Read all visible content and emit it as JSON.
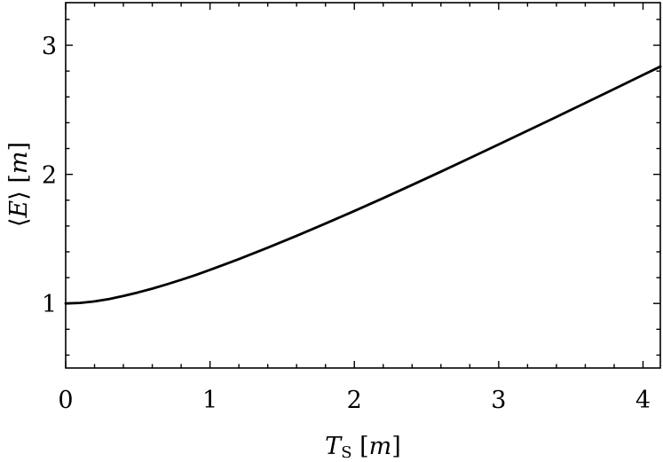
{
  "chart_data": {
    "type": "line",
    "title": "",
    "xlabel": "T_S [m]",
    "ylabel": "⟨E⟩ [m]",
    "xlim": [
      0,
      4.12
    ],
    "ylim": [
      0.5,
      3.33
    ],
    "x_ticks": [
      "0",
      "1",
      "2",
      "3",
      "4"
    ],
    "y_ticks": [
      "1",
      "2",
      "3"
    ],
    "grid": false,
    "legend": "none",
    "line_color": "#000000",
    "series": [
      {
        "x": [
          0,
          0.1,
          0.2,
          0.3,
          0.4,
          0.5,
          0.6,
          0.7,
          0.8,
          0.9,
          1.0,
          1.2,
          1.4,
          1.6,
          1.8,
          2.0,
          2.2,
          2.4,
          2.6,
          2.8,
          3.0,
          3.2,
          3.4,
          3.6,
          3.8,
          4.0,
          4.12
        ],
        "y": [
          1.0,
          1.004,
          1.016,
          1.034,
          1.058,
          1.085,
          1.115,
          1.148,
          1.183,
          1.22,
          1.26,
          1.344,
          1.432,
          1.524,
          1.619,
          1.716,
          1.816,
          1.918,
          2.021,
          2.126,
          2.232,
          2.338,
          2.445,
          2.553,
          2.661,
          2.77,
          2.835
        ]
      }
    ]
  }
}
